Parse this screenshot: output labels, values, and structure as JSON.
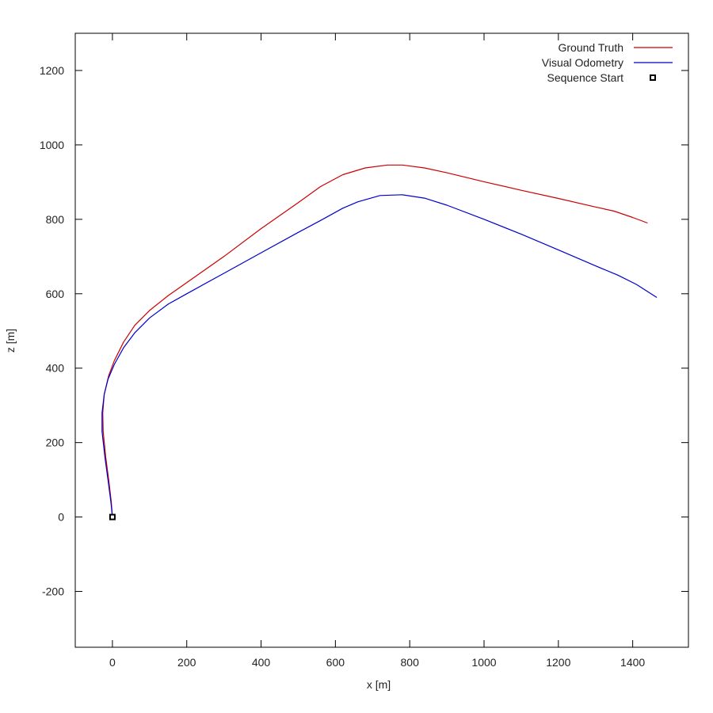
{
  "chart_data": {
    "type": "line",
    "title": "",
    "xlabel": "x [m]",
    "ylabel": "z [m]",
    "xlim": [
      -100,
      1550
    ],
    "ylim": [
      -350,
      1300
    ],
    "xticks": [
      0,
      200,
      400,
      600,
      800,
      1000,
      1200,
      1400
    ],
    "yticks": [
      -200,
      0,
      200,
      400,
      600,
      800,
      1000,
      1200
    ],
    "grid": false,
    "legend_position": "top-right",
    "series": [
      {
        "name": "Ground Truth",
        "color": "#cc0000",
        "points": [
          [
            0,
            0
          ],
          [
            -3,
            40
          ],
          [
            -10,
            100
          ],
          [
            -18,
            160
          ],
          [
            -25,
            230
          ],
          [
            -26,
            280
          ],
          [
            -22,
            330
          ],
          [
            -10,
            380
          ],
          [
            5,
            420
          ],
          [
            30,
            470
          ],
          [
            60,
            515
          ],
          [
            100,
            555
          ],
          [
            150,
            595
          ],
          [
            200,
            630
          ],
          [
            300,
            700
          ],
          [
            400,
            775
          ],
          [
            500,
            845
          ],
          [
            560,
            888
          ],
          [
            620,
            920
          ],
          [
            680,
            938
          ],
          [
            740,
            946
          ],
          [
            780,
            946
          ],
          [
            840,
            938
          ],
          [
            900,
            925
          ],
          [
            1000,
            901
          ],
          [
            1100,
            878
          ],
          [
            1200,
            856
          ],
          [
            1300,
            833
          ],
          [
            1350,
            822
          ],
          [
            1400,
            805
          ],
          [
            1440,
            790
          ]
        ]
      },
      {
        "name": "Visual Odometry",
        "color": "#0000cc",
        "points": [
          [
            0,
            0
          ],
          [
            -4,
            40
          ],
          [
            -12,
            100
          ],
          [
            -20,
            160
          ],
          [
            -28,
            230
          ],
          [
            -28,
            280
          ],
          [
            -22,
            330
          ],
          [
            -12,
            370
          ],
          [
            5,
            410
          ],
          [
            30,
            455
          ],
          [
            60,
            495
          ],
          [
            100,
            535
          ],
          [
            150,
            572
          ],
          [
            200,
            600
          ],
          [
            300,
            655
          ],
          [
            400,
            710
          ],
          [
            500,
            765
          ],
          [
            560,
            797
          ],
          [
            620,
            830
          ],
          [
            660,
            847
          ],
          [
            720,
            864
          ],
          [
            780,
            866
          ],
          [
            840,
            857
          ],
          [
            900,
            838
          ],
          [
            1000,
            800
          ],
          [
            1100,
            760
          ],
          [
            1200,
            718
          ],
          [
            1300,
            675
          ],
          [
            1360,
            650
          ],
          [
            1410,
            625
          ],
          [
            1465,
            590
          ]
        ]
      },
      {
        "name": "Sequence Start",
        "color": "#000000",
        "marker": "square",
        "points": [
          [
            0,
            0
          ]
        ]
      }
    ]
  }
}
